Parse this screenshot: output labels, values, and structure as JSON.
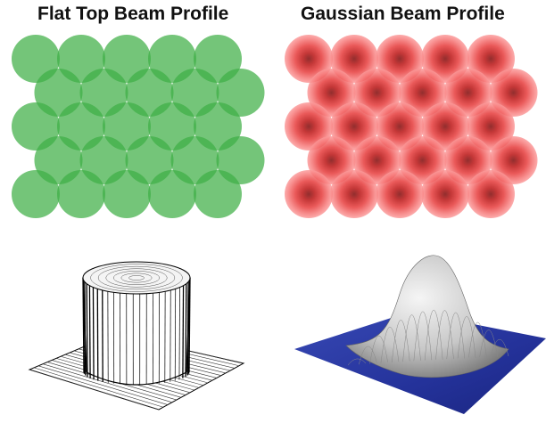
{
  "titles": {
    "left": "Flat Top Beam Profile",
    "right": "Gaussian Beam Profile"
  },
  "colors": {
    "flat_circle": "#3fae45",
    "gauss_center": "#8a0000",
    "gauss_mid": "#e53434",
    "gauss_edge": "#fb8c8c",
    "surface_base": "#2b3a9e"
  },
  "tiling": {
    "rows": 5,
    "circles_per_row": [
      5,
      5,
      5,
      5,
      5
    ],
    "row_offset": "alternating-half-pitch"
  }
}
